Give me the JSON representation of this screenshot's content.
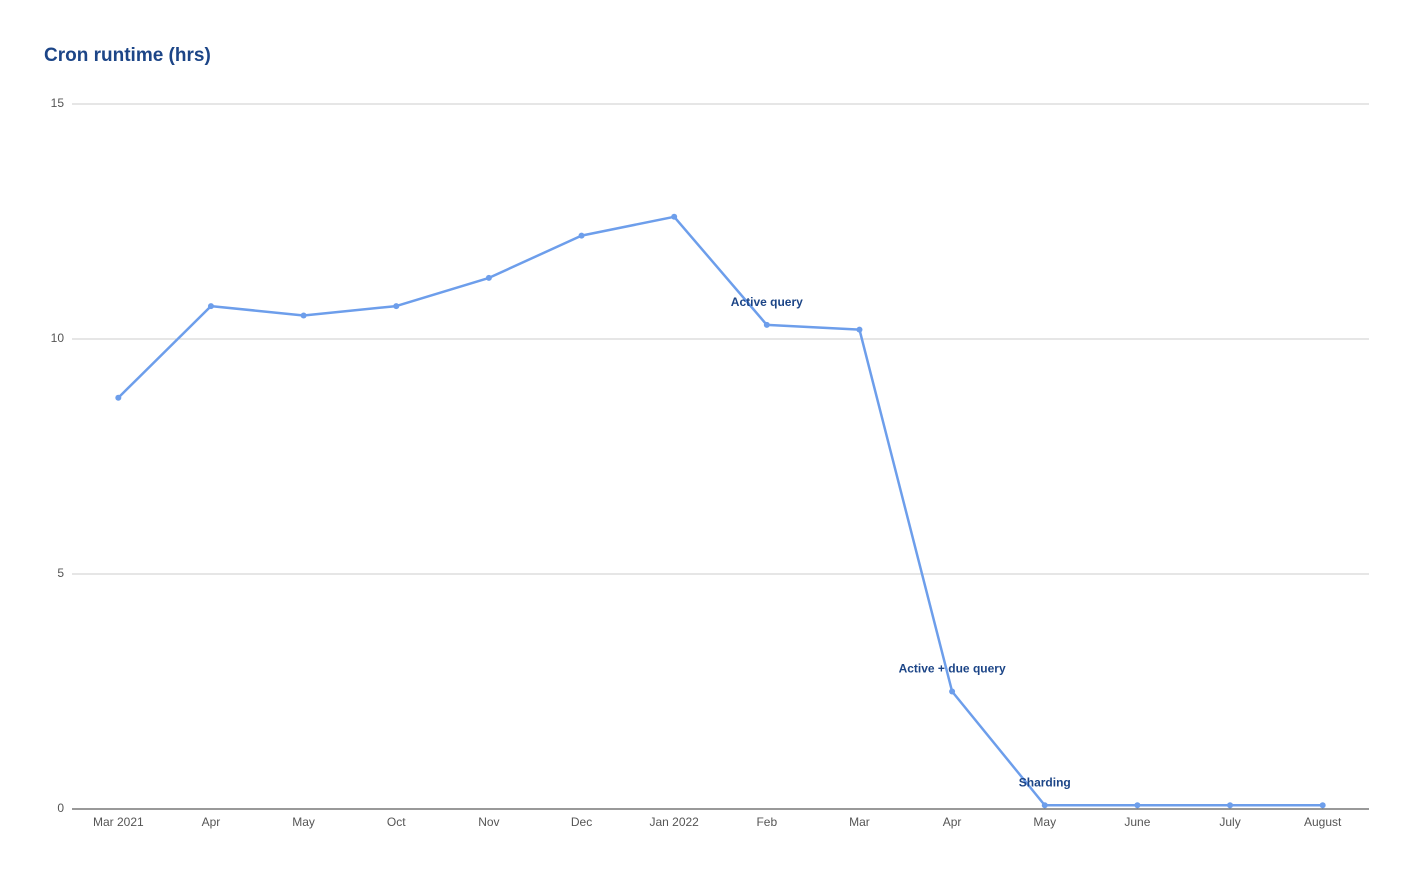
{
  "chart_data": {
    "type": "line",
    "title": "Cron runtime (hrs)",
    "categories": [
      "Mar 2021",
      "Apr",
      "May",
      "Oct",
      "Nov",
      "Dec",
      "Jan 2022",
      "Feb",
      "Mar",
      "Apr",
      "May",
      "June",
      "July",
      "August"
    ],
    "series": [
      {
        "name": "Cron runtime (hrs)",
        "color": "#6d9eeb",
        "values": [
          8.75,
          10.7,
          10.5,
          10.7,
          11.3,
          12.2,
          12.6,
          10.3,
          10.2,
          2.5,
          0.08,
          0.08,
          0.08,
          0.08
        ]
      }
    ],
    "annotations": [
      null,
      null,
      null,
      null,
      null,
      null,
      null,
      "Active query",
      null,
      "Active + due query",
      "Sharding",
      null,
      null,
      null
    ],
    "ylim": [
      0,
      15
    ],
    "yticks": [
      0,
      5,
      10,
      15
    ],
    "grid": true
  }
}
